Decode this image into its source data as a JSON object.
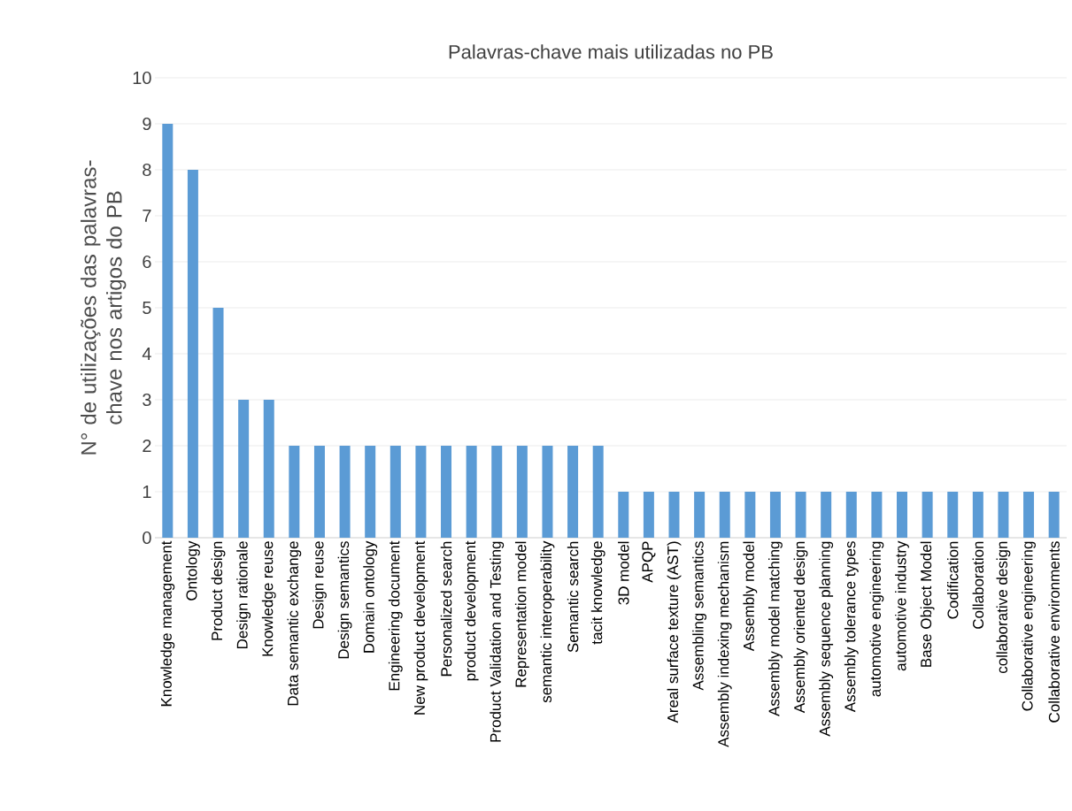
{
  "chart_data": {
    "type": "bar",
    "title": "Palavras-chave mais utilizadas no PB",
    "ylabel": "N° de utilizações das palavras-chave nos artigos do PB",
    "categories": [
      "Knowledge management",
      "Ontology",
      "Product design",
      "Design rationale",
      "Knowledge reuse",
      "Data semantic exchange",
      "Design reuse",
      "Design semantics",
      "Domain ontology",
      "Engineering document",
      "New product development",
      "Personalized search",
      "product development",
      "Product Validation and Testing",
      "Representation model",
      "semantic interoperability",
      "Semantic search",
      "tacit knowledge",
      "3D model",
      "APQP",
      "Areal surface texture (AST)",
      "Assembling semantics",
      "Assembly indexing mechanism",
      "Assembly model",
      "Assembly model matching",
      "Assembly oriented design",
      "Assembly sequence planning",
      "Assembly tolerance types",
      "automotive engineering",
      "automotive industry",
      "Base Object Model",
      "Codification",
      "Collaboration",
      "collaborative design",
      "Collaborative engineering",
      "Collaborative environments"
    ],
    "values": [
      9,
      8,
      5,
      3,
      3,
      2,
      2,
      2,
      2,
      2,
      2,
      2,
      2,
      2,
      2,
      2,
      2,
      2,
      1,
      1,
      1,
      1,
      1,
      1,
      1,
      1,
      1,
      1,
      1,
      1,
      1,
      1,
      1,
      1,
      1,
      1
    ],
    "color": "#5b9bd5",
    "ylim": [
      0,
      10
    ],
    "yticks": [
      0,
      1,
      2,
      3,
      4,
      5,
      6,
      7,
      8,
      9,
      10
    ],
    "grid": "y"
  }
}
